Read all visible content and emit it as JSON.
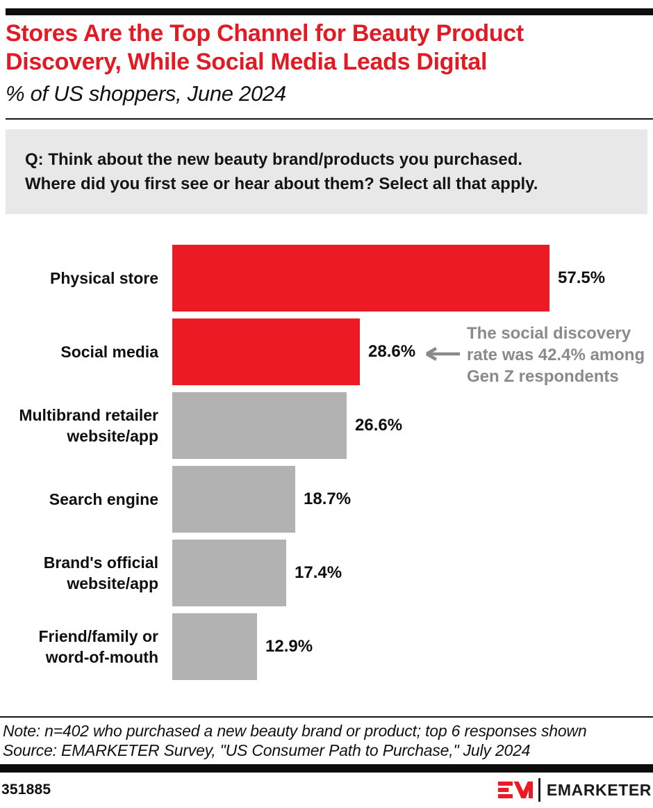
{
  "header": {
    "title_line1": "Stores Are the Top Channel for Beauty Product",
    "title_line2": "Discovery, While Social Media Leads Digital",
    "subtitle": "% of US shoppers, June 2024"
  },
  "question": {
    "line1": "Q: Think about the new beauty brand/products you purchased.",
    "line2": "Where did you first see or hear about them? Select all that apply."
  },
  "chart_data": {
    "type": "bar",
    "orientation": "horizontal",
    "unit": "% of US shoppers",
    "categories": [
      "Physical store",
      "Social media",
      "Multibrand retailer website/app",
      "Search engine",
      "Brand's official website/app",
      "Friend/family or word-of-mouth"
    ],
    "category_label_lines": [
      [
        "Physical store"
      ],
      [
        "Social media"
      ],
      [
        "Multibrand retailer",
        "website/app"
      ],
      [
        "Search engine"
      ],
      [
        "Brand's official",
        "website/app"
      ],
      [
        "Friend/family or",
        "word-of-mouth"
      ]
    ],
    "values": [
      57.5,
      28.6,
      26.6,
      18.7,
      17.4,
      12.9
    ],
    "value_labels": [
      "57.5%",
      "28.6%",
      "26.6%",
      "18.7%",
      "17.4%",
      "12.9%"
    ],
    "bar_colors": [
      "#ec1b23",
      "#ec1b23",
      "#b2b2b2",
      "#b2b2b2",
      "#b2b2b2",
      "#b2b2b2"
    ],
    "xlim": [
      0,
      60
    ],
    "grid": false,
    "legend": "none",
    "title": "Stores Are the Top Channel for Beauty Product Discovery, While Social Media Leads Digital",
    "subtitle": "% of US shoppers, June 2024",
    "annotation": {
      "lines": [
        "The social discovery",
        "rate was 42.4% among",
        "Gen Z respondents"
      ],
      "text": "The social discovery rate was 42.4% among Gen Z respondents",
      "target_category": "Social media",
      "color": "#8a8a8a"
    }
  },
  "footnote": {
    "note": "Note: n=402 who purchased a new beauty brand or product; top 6 responses shown",
    "source": "Source: EMARKETER Survey, \"US Consumer Path to Purchase,\" July 2024"
  },
  "footer": {
    "chart_id": "351885",
    "brand": "EMARKETER"
  },
  "colors": {
    "accent_red": "#ec1b23",
    "title_red": "#e21a23",
    "bar_gray": "#b2b2b2",
    "annotation_gray": "#8a8a8a",
    "question_bg": "#e8e8e8",
    "ink_black": "#0d0d0d"
  }
}
